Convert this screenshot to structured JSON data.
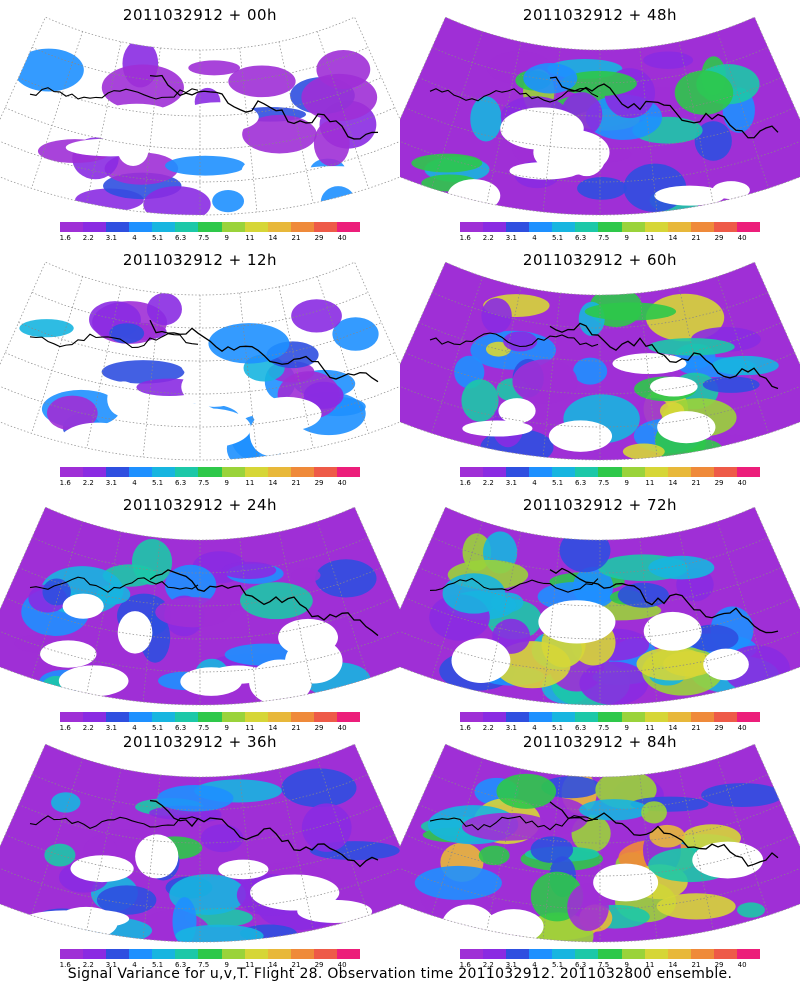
{
  "panels": [
    {
      "title": "2011032912 + 00h",
      "intensity": 0.15
    },
    {
      "title": "2011032912 + 48h",
      "intensity": 0.55
    },
    {
      "title": "2011032912 + 12h",
      "intensity": 0.25
    },
    {
      "title": "2011032912 + 60h",
      "intensity": 0.65
    },
    {
      "title": "2011032912 + 24h",
      "intensity": 0.35
    },
    {
      "title": "2011032912 + 72h",
      "intensity": 0.78
    },
    {
      "title": "2011032912 + 36h",
      "intensity": 0.45
    },
    {
      "title": "2011032912 + 84h",
      "intensity": 0.85
    }
  ],
  "colorbar": {
    "labels": [
      "1.6",
      "2.2",
      "3.1",
      "4",
      "5.1",
      "6.3",
      "7.5",
      "9",
      "11",
      "14",
      "21",
      "29",
      "40"
    ],
    "colors": [
      "#9f2fd6",
      "#8a2be2",
      "#2f4fe0",
      "#1e90ff",
      "#17b5e0",
      "#1cc8a8",
      "#2ec84a",
      "#9ad33a",
      "#d6d637",
      "#e8b83a",
      "#ef8a3a",
      "#ee5a48",
      "#ec1e7a"
    ]
  },
  "caption": "Signal Variance for u,v,T. Flight 28. Observation time 2011032912. 2011032800 ensemble."
}
